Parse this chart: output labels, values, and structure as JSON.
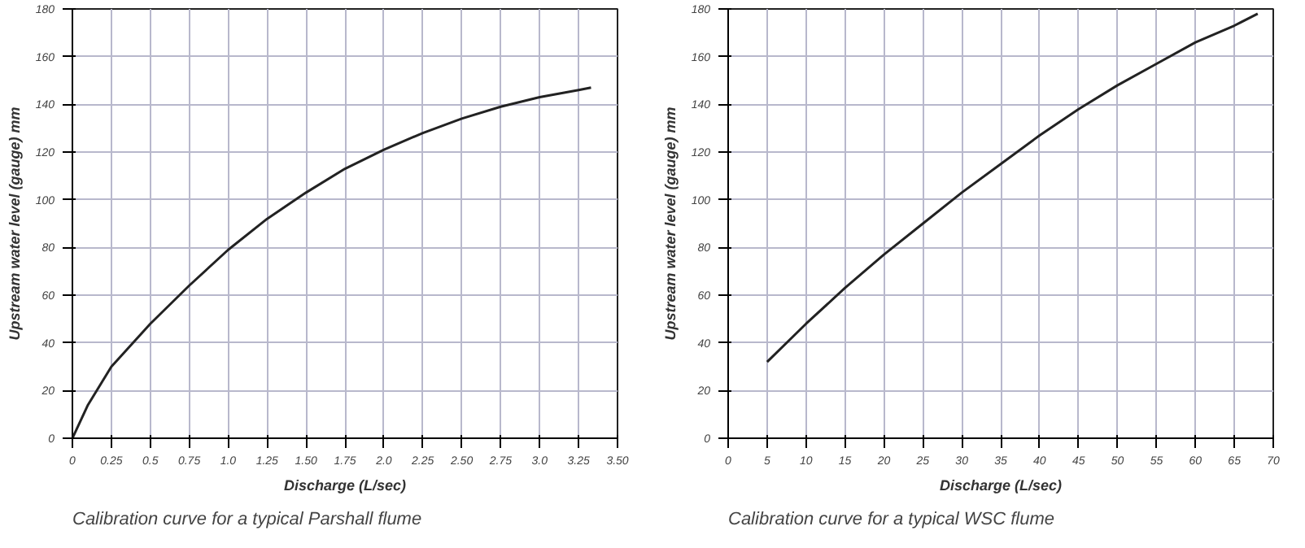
{
  "chart_data": [
    {
      "type": "line",
      "xlabel": "Discharge (L/sec)",
      "ylabel": "Upstream water level (gauge) mm",
      "annotations": [
        "Calibration curve for a typical Parshall flume"
      ],
      "x": [
        0,
        0.1,
        0.25,
        0.5,
        0.75,
        1.0,
        1.25,
        1.5,
        1.75,
        2.0,
        2.25,
        2.5,
        2.75,
        3.0,
        3.25,
        3.33
      ],
      "series": [
        {
          "color": "#222222",
          "values": [
            0,
            14,
            30,
            48,
            64,
            79,
            92,
            103,
            113,
            121,
            128,
            134,
            139,
            143,
            146,
            147
          ]
        }
      ],
      "xlim": [
        0,
        3.5
      ],
      "xticks": [
        0,
        {
          "value": 0.25,
          "label": "0.25"
        },
        {
          "value": 0.5,
          "label": "0.5"
        },
        {
          "value": 0.75,
          "label": "0.75"
        },
        {
          "value": 1.0,
          "label": "1.0"
        },
        {
          "value": 1.25,
          "label": "1.25"
        },
        {
          "value": 1.5,
          "label": "1.50"
        },
        {
          "value": 1.75,
          "label": "1.75"
        },
        {
          "value": 2.0,
          "label": "2.0"
        },
        {
          "value": 2.25,
          "label": "2.25"
        },
        {
          "value": 2.5,
          "label": "2.50"
        },
        {
          "value": 2.75,
          "label": "2.75"
        },
        {
          "value": 3.0,
          "label": "3.0"
        },
        {
          "value": 3.25,
          "label": "3.25"
        },
        {
          "value": 3.5,
          "label": "3.50"
        }
      ],
      "ylim": [
        0,
        180
      ],
      "yticks": [
        0,
        20,
        40,
        60,
        80,
        100,
        120,
        140,
        160,
        180
      ],
      "grid": true,
      "marker": "none",
      "line_style": "solid"
    },
    {
      "type": "line",
      "xlabel": "Discharge (L/sec)",
      "ylabel": "Upstream water level (gauge) mm",
      "annotations": [
        "Calibration curve for a typical WSC flume"
      ],
      "x": [
        5,
        10,
        15,
        20,
        25,
        30,
        35,
        40,
        45,
        50,
        55,
        60,
        65,
        68
      ],
      "series": [
        {
          "color": "#222222",
          "values": [
            32,
            48,
            63,
            77,
            90,
            103,
            115,
            127,
            138,
            148,
            157,
            166,
            173,
            178
          ]
        }
      ],
      "xlim": [
        0,
        70
      ],
      "xticks": [
        0,
        5,
        10,
        15,
        20,
        25,
        30,
        35,
        40,
        45,
        50,
        55,
        60,
        65,
        70
      ],
      "ylim": [
        0,
        180
      ],
      "yticks": [
        0,
        20,
        40,
        60,
        80,
        100,
        120,
        140,
        160,
        180
      ],
      "grid": true,
      "marker": "none",
      "line_style": "solid"
    }
  ]
}
